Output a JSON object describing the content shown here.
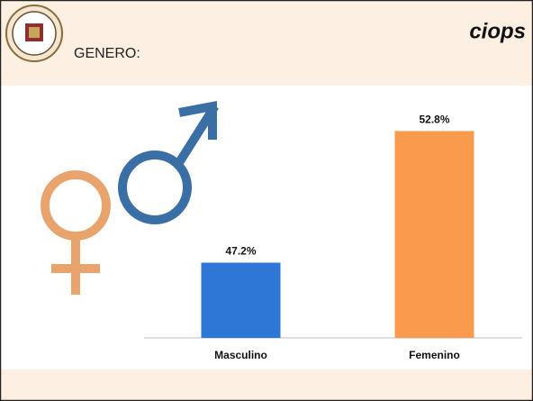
{
  "chart_data": {
    "type": "bar",
    "title": "GENERO:",
    "logo_text": "ciops",
    "categories": [
      "Masculino",
      "Femenino"
    ],
    "values": [
      47.2,
      52.8
    ],
    "value_labels": [
      "47.2%",
      "52.8%"
    ],
    "colors": [
      "#2f77d6",
      "#f99a4c"
    ],
    "ylim": [
      44,
      55
    ]
  }
}
